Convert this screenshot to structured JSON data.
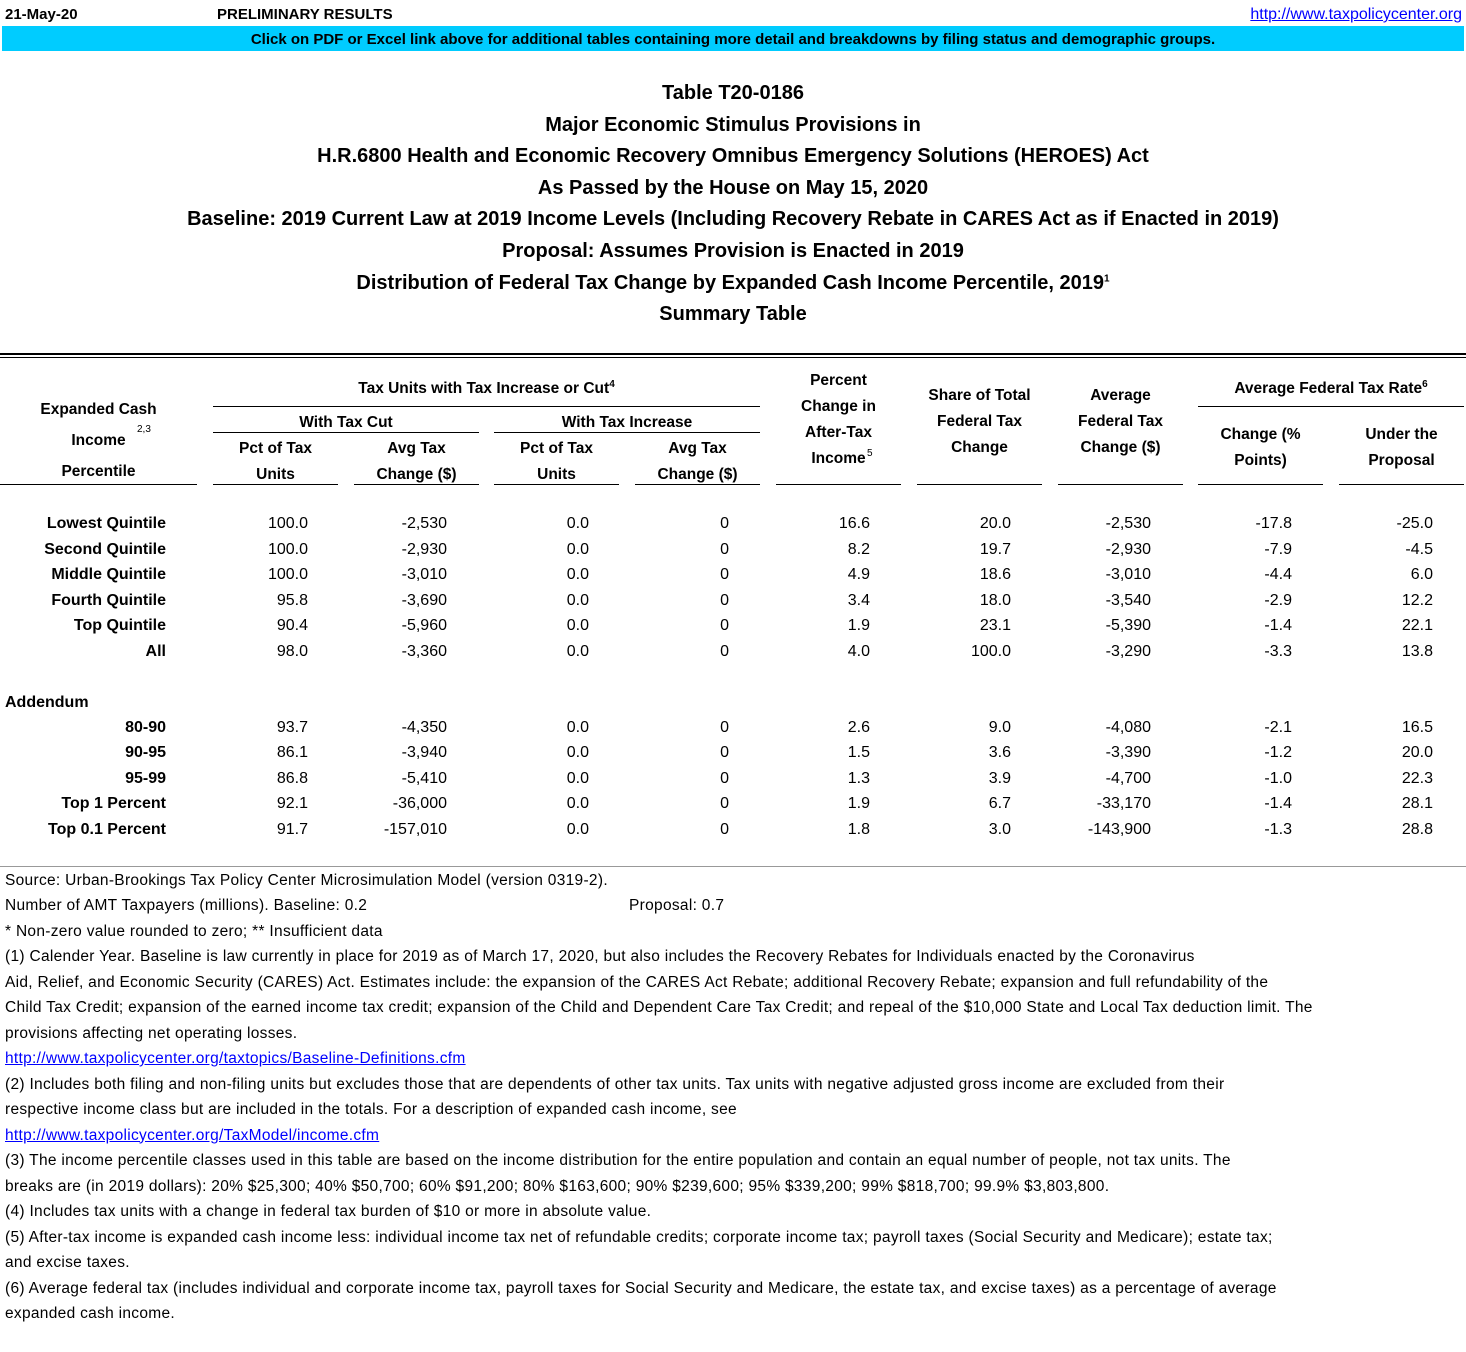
{
  "header": {
    "date": "21-May-20",
    "status": "PRELIMINARY RESULTS",
    "link": "http://www.taxpolicycenter.org",
    "banner": "Click on PDF or Excel link above for additional tables containing more detail and breakdowns by filing status and demographic groups.",
    "banner_color": "#00ccff"
  },
  "titles": [
    "Table T20-0186",
    "Major Economic Stimulus Provisions in",
    "H.R.6800 Health and Economic Recovery Omnibus Emergency Solutions (HEROES) Act",
    "As Passed by the House on May 15, 2020",
    "Baseline: 2019 Current Law at 2019 Income Levels (Including Recovery Rebate in CARES Act as if Enacted in 2019)",
    "Proposal: Assumes Provision is Enacted in 2019",
    "Distribution of Federal Tax Change by Expanded Cash Income Percentile, 2019",
    "Summary Table"
  ],
  "title_note": "1",
  "columns": {
    "label": "Expanded Cash Income Percentile",
    "label_note": "2,3",
    "group_units": "Tax Units with Tax Increase or Cut",
    "group_units_note": "4",
    "with_cut": "With Tax Cut",
    "with_increase": "With Tax Increase",
    "pct_units": "Pct of Tax Units",
    "avg_change": "Avg Tax Change ($)",
    "pct_change_after_tax": "Percent Change in After-Tax Income",
    "pct_change_note": "5",
    "share_total": "Share of Total Federal Tax Change",
    "avg_fed_change": "Average Federal Tax Change ($)",
    "group_rate": "Average Federal Tax Rate",
    "group_rate_note": "6",
    "rate_change": "Change (% Points)",
    "rate_proposal": "Under the Proposal"
  },
  "rows": [
    {
      "label": "Lowest Quintile",
      "values": [
        "100.0",
        "-2,530",
        "0.0",
        "0",
        "16.6",
        "20.0",
        "-2,530",
        "-17.8",
        "-25.0"
      ]
    },
    {
      "label": "Second Quintile",
      "values": [
        "100.0",
        "-2,930",
        "0.0",
        "0",
        "8.2",
        "19.7",
        "-2,930",
        "-7.9",
        "-4.5"
      ]
    },
    {
      "label": "Middle Quintile",
      "values": [
        "100.0",
        "-3,010",
        "0.0",
        "0",
        "4.9",
        "18.6",
        "-3,010",
        "-4.4",
        "6.0"
      ]
    },
    {
      "label": "Fourth Quintile",
      "values": [
        "95.8",
        "-3,690",
        "0.0",
        "0",
        "3.4",
        "18.0",
        "-3,540",
        "-2.9",
        "12.2"
      ]
    },
    {
      "label": "Top Quintile",
      "values": [
        "90.4",
        "-5,960",
        "0.0",
        "0",
        "1.9",
        "23.1",
        "-5,390",
        "-1.4",
        "22.1"
      ]
    },
    {
      "label": "All",
      "values": [
        "98.0",
        "-3,360",
        "0.0",
        "0",
        "4.0",
        "100.0",
        "-3,290",
        "-3.3",
        "13.8"
      ]
    }
  ],
  "addendum_label": "Addendum",
  "addendum_rows": [
    {
      "label": "80-90",
      "values": [
        "93.7",
        "-4,350",
        "0.0",
        "0",
        "2.6",
        "9.0",
        "-4,080",
        "-2.1",
        "16.5"
      ]
    },
    {
      "label": "90-95",
      "values": [
        "86.1",
        "-3,940",
        "0.0",
        "0",
        "1.5",
        "3.6",
        "-3,390",
        "-1.2",
        "20.0"
      ]
    },
    {
      "label": "95-99",
      "values": [
        "86.8",
        "-5,410",
        "0.0",
        "0",
        "1.3",
        "3.9",
        "-4,700",
        "-1.0",
        "22.3"
      ]
    },
    {
      "label": "Top 1 Percent",
      "values": [
        "92.1",
        "-36,000",
        "0.0",
        "0",
        "1.9",
        "6.7",
        "-33,170",
        "-1.4",
        "28.1"
      ]
    },
    {
      "label": "Top 0.1 Percent",
      "values": [
        "91.7",
        "-157,010",
        "0.0",
        "0",
        "1.8",
        "3.0",
        "-143,900",
        "-1.3",
        "28.8"
      ]
    }
  ],
  "notes": {
    "source": "Source: Urban-Brookings Tax Policy Center Microsimulation Model (version 0319-2).",
    "amt": "Number of AMT Taxpayers (millions).  Baseline: 0.2",
    "amt_proposal": "Proposal: 0.7",
    "legend": "* Non-zero value rounded to zero; ** Insufficient data",
    "lines": [
      {
        "text": "(1) Calender Year. Baseline is law currently in place for 2019 as of March 17, 2020, but also includes the Recovery Rebates for Individuals enacted by the Coronavirus"
      },
      {
        "text": "Aid, Relief, and Economic Security (CARES) Act. Estimates include: the expansion of the CARES Act Rebate; additional Recovery Rebate; expansion and full refundability of the"
      },
      {
        "text": "Child Tax Credit; expansion of the earned income tax credit; expansion of the Child and Dependent Care Tax Credit; and repeal of the $10,000 State and Local Tax deduction limit. The"
      },
      {
        "text": "provisions affecting net operating losses."
      },
      {
        "link": "http://www.taxpolicycenter.org/taxtopics/Baseline-Definitions.cfm"
      },
      {
        "text": "(2) Includes both filing and non-filing units but excludes those that are dependents of other tax units. Tax units with negative adjusted gross income are excluded from their"
      },
      {
        "text": "respective income class but are included in the totals. For a description of expanded cash income, see"
      },
      {
        "link": "http://www.taxpolicycenter.org/TaxModel/income.cfm"
      },
      {
        "text": "(3) The income percentile classes used in this table are based on the income distribution for the entire population and contain an equal number of people, not tax units. The"
      },
      {
        "text": "breaks are (in 2019 dollars): 20% $25,300; 40% $50,700; 60% $91,200; 80% $163,600; 90% $239,600; 95% $339,200; 99% $818,700; 99.9% $3,803,800."
      },
      {
        "text": "(4) Includes tax units with a change in federal tax burden of $10 or more in absolute value."
      },
      {
        "text": "(5) After-tax income is expanded cash income less: individual income tax net of refundable credits; corporate income tax; payroll taxes (Social Security and Medicare); estate tax;"
      },
      {
        "text": "and excise taxes."
      },
      {
        "text": "(6) Average federal tax (includes individual and corporate income tax, payroll taxes for Social Security and Medicare, the estate tax, and excise taxes) as a percentage of average"
      },
      {
        "text": "expanded cash income."
      }
    ]
  }
}
